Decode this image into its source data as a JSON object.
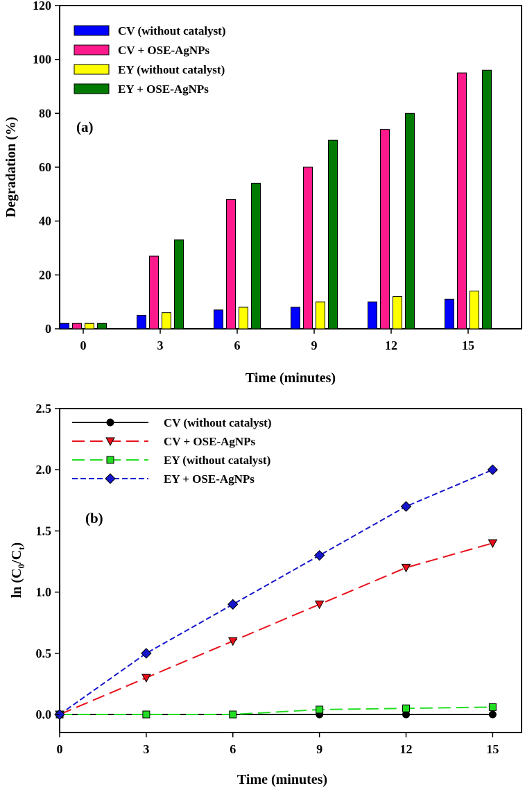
{
  "chart_data": [
    {
      "type": "bar",
      "panel_label": "(a)",
      "xlabel": "Time (minutes)",
      "ylabel": "Degradation (%)",
      "ylim": [
        0,
        120
      ],
      "yticks": [
        "0",
        "20",
        "40",
        "60",
        "80",
        "100",
        "120"
      ],
      "categories": [
        "0",
        "3",
        "6",
        "9",
        "12",
        "15"
      ],
      "legend_position": "top-left",
      "series": [
        {
          "name": "CV (without catalyst)",
          "color": "#0000ff",
          "values": [
            2,
            5,
            7,
            8,
            10,
            11
          ]
        },
        {
          "name": "CV + OSE-AgNPs",
          "color": "#ff1a8c",
          "values": [
            2,
            27,
            48,
            60,
            74,
            95
          ]
        },
        {
          "name": "EY (without catalyst)",
          "color": "#ffff00",
          "values": [
            2,
            6,
            8,
            10,
            12,
            14
          ]
        },
        {
          "name": "EY + OSE-AgNPs",
          "color": "#007a00",
          "values": [
            2,
            33,
            54,
            70,
            80,
            96
          ]
        }
      ]
    },
    {
      "type": "line",
      "panel_label": "(b)",
      "xlabel": "Time (minutes)",
      "ylabel_main": "ln (C",
      "ylabel_sub0": "0",
      "ylabel_mid": "/C",
      "ylabel_subt": "t",
      "ylabel_end": ")",
      "xlim": [
        0,
        16
      ],
      "ylim": [
        0,
        2.5
      ],
      "x": [
        0,
        3,
        6,
        9,
        12,
        15
      ],
      "xticks": [
        "0",
        "3",
        "6",
        "9",
        "12",
        "15"
      ],
      "yticks": [
        "0.0",
        "0.5",
        "1.0",
        "1.5",
        "2.0",
        "2.5"
      ],
      "legend_position": "top-left",
      "series": [
        {
          "name": "CV (without catalyst)",
          "color": "#000000",
          "marker": "circle",
          "dash": "solid",
          "values": [
            0,
            0,
            0,
            0,
            0,
            0
          ]
        },
        {
          "name": "CV + OSE-AgNPs",
          "color": "#e8101a",
          "marker": "triangle-down",
          "dash": "long-dash",
          "values": [
            0,
            0.3,
            0.6,
            0.9,
            1.2,
            1.4
          ]
        },
        {
          "name": "EY (without catalyst)",
          "color": "#22dd22",
          "marker": "square",
          "dash": "long-dash",
          "values": [
            0,
            0,
            0,
            0.04,
            0.05,
            0.06
          ]
        },
        {
          "name": "EY + OSE-AgNPs",
          "color": "#1515cc",
          "marker": "diamond",
          "dash": "short-dash",
          "values": [
            0,
            0.5,
            0.9,
            1.3,
            1.7,
            2.0
          ]
        }
      ]
    }
  ]
}
